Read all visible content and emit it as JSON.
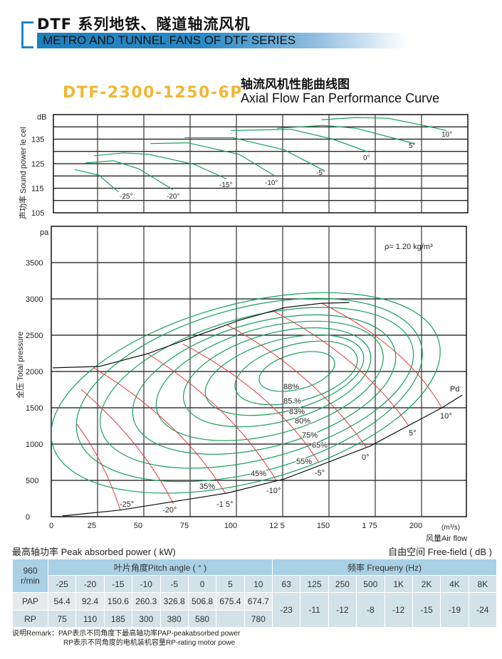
{
  "header": {
    "title_cn": "DTF 系列地铁、隧道轴流风机",
    "title_en": "METRO AND TUNNEL FANS OF DTF SERIES"
  },
  "model": "DTF-2300-1250-6P",
  "chart_title_cn": "轴流风机性能曲线图",
  "chart_title_en": "Axial Flow Fan Performance Curve",
  "colors": {
    "accent_blue": "#1e86c6",
    "model_orange": "#f2b632",
    "efficiency_green": "#14a05a",
    "pitch_red": "#e8383a",
    "table_header": "#a9d0e4"
  },
  "chart_data": [
    {
      "type": "line",
      "title": "Sound power level",
      "ylabel": "声功率 Sound power le cel",
      "yunit": "dB",
      "ylim": [
        105,
        145
      ],
      "yticks": [
        "105",
        "115",
        "125",
        "135"
      ],
      "xlim": [
        0,
        224
      ],
      "grid": true,
      "series": [
        {
          "name": "-25°",
          "points": [
            [
              12.7,
              122.6
            ],
            [
              25.8,
              120.3
            ],
            [
              36.2,
              113.5
            ]
          ]
        },
        {
          "name": "-20°",
          "points": [
            [
              18.5,
              125.3
            ],
            [
              33.5,
              126.2
            ],
            [
              47.3,
              122.9
            ],
            [
              65.8,
              114.4
            ]
          ]
        },
        {
          "name": "-15°",
          "points": [
            [
              23,
              128.2
            ],
            [
              38.8,
              129.4
            ],
            [
              52.7,
              128.8
            ],
            [
              77.3,
              124.7
            ],
            [
              94.6,
              118.8
            ]
          ]
        },
        {
          "name": "-10°",
          "points": [
            [
              53.5,
              133.2
            ],
            [
              73.8,
              133.5
            ],
            [
              101.5,
              128.8
            ],
            [
              120.8,
              120
            ]
          ]
        },
        {
          "name": "-5°",
          "points": [
            [
              72,
              135.6
            ],
            [
              98,
              135.6
            ],
            [
              126,
              130.6
            ],
            [
              147,
              122.3
            ]
          ]
        },
        {
          "name": "0°",
          "points": [
            [
              97,
              138.5
            ],
            [
              129.6,
              139
            ],
            [
              152,
              135
            ],
            [
              171.5,
              129.7
            ]
          ]
        },
        {
          "name": "5°",
          "points": [
            [
              122,
              139.4
            ],
            [
              147,
              140.6
            ],
            [
              164.6,
              139.4
            ],
            [
              187,
              135
            ],
            [
              196,
              133.2
            ]
          ]
        },
        {
          "name": "10°",
          "points": [
            [
              146,
              142.9
            ],
            [
              164.6,
              143.8
            ],
            [
              182,
              143.5
            ],
            [
              201,
              140.6
            ],
            [
              213.5,
              138.5
            ]
          ]
        }
      ]
    },
    {
      "type": "line",
      "title": "Total pressure vs air flow",
      "ylabel": "全压 Total pressure",
      "yunit": "pa",
      "xlabel": "风量Air flow",
      "xunit": "(m³/s)",
      "ylim": [
        0,
        4000
      ],
      "yticks": [
        "0",
        "500",
        "1000",
        "1500",
        "2000",
        "2500",
        "3000",
        "3500"
      ],
      "xlim": [
        0,
        224
      ],
      "xticks": [
        "0",
        "25",
        "50",
        "75",
        "100",
        "12 5",
        "150",
        "1 75",
        "200"
      ],
      "grid": true,
      "annotation": "ρ= 1.20 kg/m³",
      "pitch_lines": [
        {
          "name": "-25°",
          "points": [
            [
              13.5,
              1285
            ],
            [
              27,
              730
            ],
            [
              37.3,
              90
            ]
          ]
        },
        {
          "name": "-20°",
          "points": [
            [
              16,
              1755
            ],
            [
              45,
              1000
            ],
            [
              66,
              175
            ]
          ]
        },
        {
          "name": "-1 5°",
          "points": [
            [
              23,
              2050
            ],
            [
              64,
              1260
            ],
            [
              94,
              325
            ]
          ]
        },
        {
          "name": "-10°",
          "points": [
            [
              52,
              2245
            ],
            [
              92,
              1450
            ],
            [
              121.5,
              500
            ]
          ]
        },
        {
          "name": "-5°",
          "points": [
            [
              71,
              2380
            ],
            [
              114,
              1640
            ],
            [
              144.6,
              745
            ]
          ]
        },
        {
          "name": "0°",
          "points": [
            [
              95,
              2640
            ],
            [
              137,
              1900
            ],
            [
              170,
              960
            ]
          ]
        },
        {
          "name": "5°",
          "points": [
            [
              120,
              2830
            ],
            [
              162,
              2120
            ],
            [
              193,
              1255
            ]
          ]
        },
        {
          "name": "10°",
          "points": [
            [
              146,
              2940
            ],
            [
              185,
              2290
            ],
            [
              211,
              1500
            ]
          ]
        }
      ],
      "efficiency_contours": [
        {
          "name": "88%",
          "center": [
            132.7,
            2000
          ],
          "semi_flow": 21,
          "semi_pa": 245
        },
        {
          "name": "85 %",
          "center": [
            132.3,
            1980
          ],
          "semi_flow": 34,
          "semi_pa": 390
        },
        {
          "name": "83%",
          "center": [
            126,
            1950
          ],
          "semi_flow": 44,
          "semi_pa": 490
        },
        {
          "name": "80%",
          "center": [
            122,
            1920
          ],
          "semi_flow": 52,
          "semi_pa": 610
        },
        {
          "name": "75%",
          "center": [
            118,
            1870
          ],
          "semi_flow": 63,
          "semi_pa": 735
        },
        {
          "name": "65%",
          "center": [
            115,
            1820
          ],
          "semi_flow": 73,
          "semi_pa": 860
        },
        {
          "name": "55%",
          "center": [
            111,
            1775
          ],
          "semi_flow": 87,
          "semi_pa": 980
        },
        {
          "name": "45%",
          "center": [
            107,
            1745
          ],
          "semi_flow": 96,
          "semi_pa": 1130
        },
        {
          "name": "35%",
          "center": [
            105,
            1705
          ],
          "semi_flow": 108,
          "semi_pa": 1225
        }
      ],
      "stall_line": {
        "points": [
          [
            0.8,
            2050
          ],
          [
            26,
            2070
          ],
          [
            52,
            2245
          ],
          [
            101.5,
            2705
          ],
          [
            126,
            2880
          ],
          [
            146,
            2940
          ],
          [
            161,
            2950
          ]
        ]
      },
      "pd_line": {
        "name": "Pd",
        "points": [
          [
            6,
            10
          ],
          [
            37,
            90
          ],
          [
            95,
            325
          ],
          [
            126,
            520
          ],
          [
            172,
            970
          ],
          [
            211,
            1500
          ],
          [
            222,
            1675
          ]
        ]
      }
    }
  ],
  "table": {
    "power_label": "最高轴功率 Peak absorbed power ( kW)",
    "noise_label": "自由空间 Free-field ( dB )",
    "speed_value": "960",
    "speed_unit": "r/min",
    "pitch_header": "叶片角度Pitch angle ( ° )",
    "freq_header": "频率  Frequeny  (Hz)",
    "pitch_angles": [
      "-25",
      "-20",
      "-15",
      "-10",
      "-5",
      "0",
      "5",
      "10"
    ],
    "freqs": [
      "63",
      "125",
      "250",
      "500",
      "1K",
      "2K",
      "4K",
      "8K"
    ],
    "pap_label": "PAP",
    "rp_label": "RP",
    "pap": [
      "54.4",
      "92.4",
      "150.6",
      "260.3",
      "326.8",
      "506.8",
      "675.4",
      "674.7"
    ],
    "rp": [
      "75",
      "110",
      "185",
      "300",
      "380",
      "580",
      "",
      "780"
    ],
    "noise": [
      "-23",
      "-11",
      "-12",
      "-8",
      "-12",
      "-15",
      "-19",
      "-24"
    ]
  },
  "remark": {
    "line1": "说明Remark：PAP表示不同角度下最高轴功率PAP-peakabsorbed power",
    "line2": "RP表示不同角度的电机装机容量RP-rating motor powe"
  }
}
